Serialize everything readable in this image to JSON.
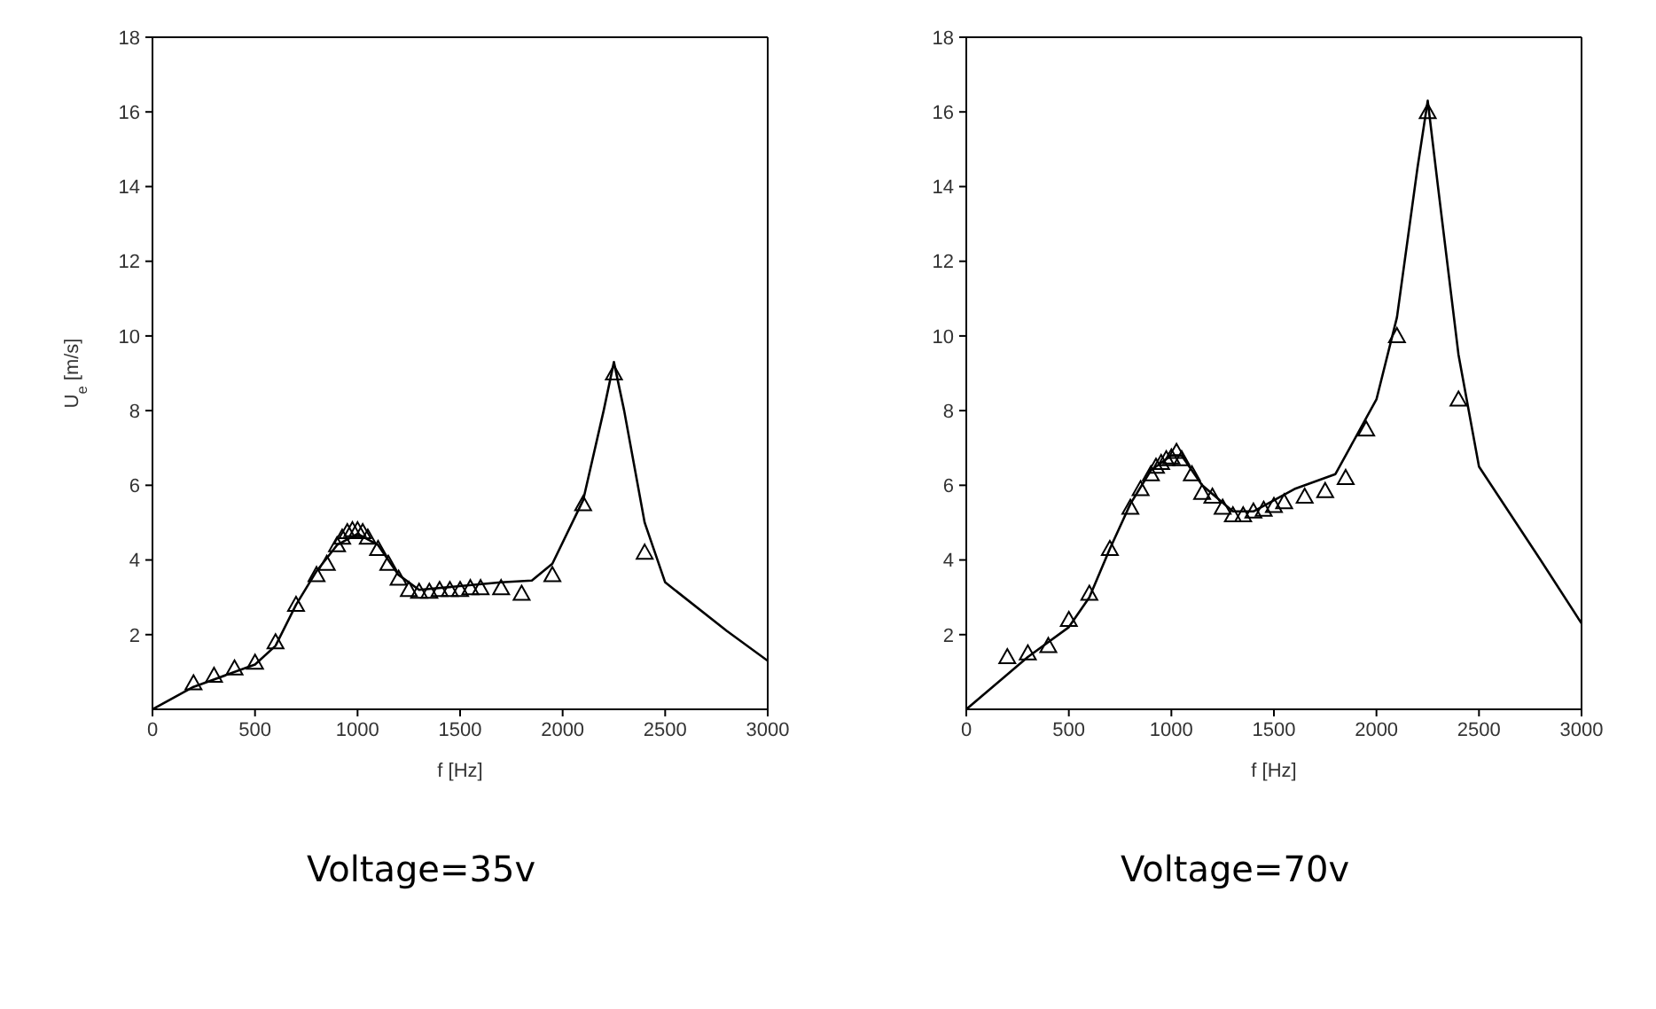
{
  "chart_data": [
    {
      "type": "line",
      "xlabel": "f [Hz]",
      "ylabel": "U$_{e}$ [m/s]",
      "xlim": [
        0,
        3000
      ],
      "ylim": [
        0,
        18
      ],
      "xticks": [
        0,
        500,
        1000,
        1500,
        2000,
        2500,
        3000
      ],
      "yticks": [
        2,
        4,
        6,
        8,
        10,
        12,
        14,
        16,
        18
      ],
      "grid": false,
      "legend": false,
      "annotations": [
        "Voltage=35v"
      ],
      "series": [
        {
          "color": "#000000",
          "marker": "none",
          "x": [
            0,
            200,
            500,
            600,
            700,
            800,
            900,
            1000,
            1100,
            1200,
            1300,
            1500,
            1700,
            1850,
            1950,
            2100,
            2200,
            2250,
            2300,
            2400,
            2500,
            2800,
            3000
          ],
          "values": [
            0,
            0.6,
            1.2,
            1.7,
            2.8,
            3.7,
            4.4,
            4.7,
            4.4,
            3.6,
            3.2,
            3.3,
            3.4,
            3.45,
            3.9,
            5.6,
            8.0,
            9.3,
            8.0,
            5.0,
            3.4,
            2.1,
            1.3
          ]
        },
        {
          "type": "scatter",
          "color": "#000000",
          "marker": "triangle",
          "x": [
            200,
            300,
            400,
            500,
            600,
            700,
            800,
            850,
            900,
            925,
            950,
            975,
            1000,
            1025,
            1050,
            1100,
            1150,
            1200,
            1250,
            1300,
            1350,
            1400,
            1450,
            1500,
            1550,
            1600,
            1700,
            1800,
            1950,
            2100,
            2250,
            2400
          ],
          "values": [
            0.7,
            0.9,
            1.1,
            1.25,
            1.8,
            2.8,
            3.6,
            3.9,
            4.4,
            4.6,
            4.75,
            4.8,
            4.8,
            4.75,
            4.6,
            4.3,
            3.9,
            3.5,
            3.2,
            3.15,
            3.15,
            3.2,
            3.2,
            3.2,
            3.25,
            3.25,
            3.25,
            3.1,
            3.6,
            5.5,
            9.0,
            4.2
          ]
        }
      ]
    },
    {
      "type": "line",
      "xlabel": "f [Hz]",
      "xlim": [
        0,
        3000
      ],
      "ylim": [
        0,
        18
      ],
      "xticks": [
        0,
        500,
        1000,
        1500,
        2000,
        2500,
        3000
      ],
      "yticks": [
        2,
        4,
        6,
        8,
        10,
        12,
        14,
        16,
        18
      ],
      "grid": false,
      "legend": false,
      "annotations": [
        "Voltage=70v"
      ],
      "series": [
        {
          "color": "#000000",
          "marker": "none",
          "x": [
            0,
            300,
            500,
            600,
            700,
            800,
            900,
            1000,
            1050,
            1150,
            1300,
            1400,
            1600,
            1800,
            2000,
            2100,
            2200,
            2250,
            2300,
            2400,
            2500,
            2800,
            3000
          ],
          "values": [
            0,
            1.4,
            2.2,
            3.0,
            4.3,
            5.5,
            6.4,
            6.8,
            6.8,
            6.0,
            5.3,
            5.3,
            5.9,
            6.3,
            8.3,
            10.5,
            14.5,
            16.3,
            14.0,
            9.5,
            6.5,
            4.0,
            2.3
          ]
        },
        {
          "type": "scatter",
          "color": "#000000",
          "marker": "triangle",
          "x": [
            200,
            300,
            400,
            500,
            600,
            700,
            800,
            850,
            900,
            925,
            950,
            975,
            1000,
            1025,
            1050,
            1100,
            1150,
            1200,
            1250,
            1300,
            1350,
            1400,
            1450,
            1500,
            1550,
            1650,
            1750,
            1850,
            1950,
            2100,
            2250,
            2400
          ],
          "values": [
            1.4,
            1.5,
            1.7,
            2.4,
            3.1,
            4.3,
            5.4,
            5.9,
            6.3,
            6.5,
            6.6,
            6.7,
            6.75,
            6.9,
            6.7,
            6.3,
            5.8,
            5.7,
            5.4,
            5.2,
            5.2,
            5.3,
            5.35,
            5.45,
            5.55,
            5.7,
            5.85,
            6.2,
            7.5,
            10.0,
            16.0,
            8.3
          ]
        }
      ]
    }
  ]
}
